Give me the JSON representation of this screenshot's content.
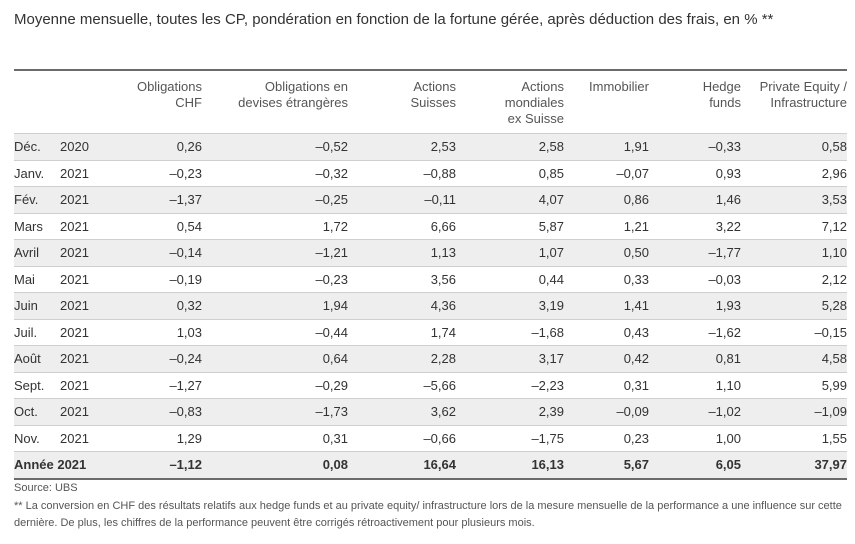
{
  "title": "Moyenne mensuelle, toutes les CP, pondération en fonction de la fortune gérée, après déduction des frais, en % **",
  "headers": [
    {
      "l1": "Obligations",
      "l2": "CHF",
      "l3": ""
    },
    {
      "l1": "Obligations en",
      "l2": "devises étrangères",
      "l3": ""
    },
    {
      "l1": "Actions",
      "l2": "Suisses",
      "l3": ""
    },
    {
      "l1": "Actions",
      "l2": "mondiales",
      "l3": "ex Suisse"
    },
    {
      "l1": "Immobilier",
      "l2": "",
      "l3": ""
    },
    {
      "l1": "Hedge",
      "l2": "funds",
      "l3": ""
    },
    {
      "l1": "Private Equity /",
      "l2": "Infrastructure",
      "l3": ""
    }
  ],
  "rows": [
    {
      "month": "Déc.",
      "year": "2020",
      "v": [
        "0,26",
        "–0,52",
        "2,53",
        "2,58",
        "1,91",
        "–0,33",
        "0,58"
      ]
    },
    {
      "month": "Janv.",
      "year": "2021",
      "v": [
        "–0,23",
        "–0,32",
        "–0,88",
        "0,85",
        "–0,07",
        "0,93",
        "2,96"
      ]
    },
    {
      "month": "Fév.",
      "year": "2021",
      "v": [
        "–1,37",
        "–0,25",
        "–0,11",
        "4,07",
        "0,86",
        "1,46",
        "3,53"
      ]
    },
    {
      "month": "Mars",
      "year": "2021",
      "v": [
        "0,54",
        "1,72",
        "6,66",
        "5,87",
        "1,21",
        "3,22",
        "7,12"
      ]
    },
    {
      "month": "Avril",
      "year": "2021",
      "v": [
        "–0,14",
        "–1,21",
        "1,13",
        "1,07",
        "0,50",
        "–1,77",
        "1,10"
      ]
    },
    {
      "month": "Mai",
      "year": "2021",
      "v": [
        "–0,19",
        "–0,23",
        "3,56",
        "0,44",
        "0,33",
        "–0,03",
        "2,12"
      ]
    },
    {
      "month": "Juin",
      "year": "2021",
      "v": [
        "0,32",
        "1,94",
        "4,36",
        "3,19",
        "1,41",
        "1,93",
        "5,28"
      ]
    },
    {
      "month": "Juil.",
      "year": "2021",
      "v": [
        "1,03",
        "–0,44",
        "1,74",
        "–1,68",
        "0,43",
        "–1,62",
        "–0,15"
      ]
    },
    {
      "month": "Août",
      "year": "2021",
      "v": [
        "–0,24",
        "0,64",
        "2,28",
        "3,17",
        "0,42",
        "0,81",
        "4,58"
      ]
    },
    {
      "month": "Sept.",
      "year": "2021",
      "v": [
        "–1,27",
        "–0,29",
        "–5,66",
        "–2,23",
        "0,31",
        "1,10",
        "5,99"
      ]
    },
    {
      "month": "Oct.",
      "year": "2021",
      "v": [
        "–0,83",
        "–1,73",
        "3,62",
        "2,39",
        "–0,09",
        "–1,02",
        "–1,09"
      ]
    },
    {
      "month": "Nov.",
      "year": "2021",
      "v": [
        "1,29",
        "0,31",
        "–0,66",
        "–1,75",
        "0,23",
        "1,00",
        "1,55"
      ]
    }
  ],
  "total": {
    "label": "Année 2021",
    "v": [
      "–1,12",
      "0,08",
      "16,64",
      "16,13",
      "5,67",
      "6,05",
      "37,97"
    ]
  },
  "source": "Source: UBS",
  "note": "** La conversion en CHF des résultats relatifs aux hedge funds et au private equity/ infrastructure lors de la mesure mensuelle de la performance a une influence sur cette dernière. De plus, les chiffres de la performance peuvent être corrigés rétroactivement pour plusieurs mois."
}
